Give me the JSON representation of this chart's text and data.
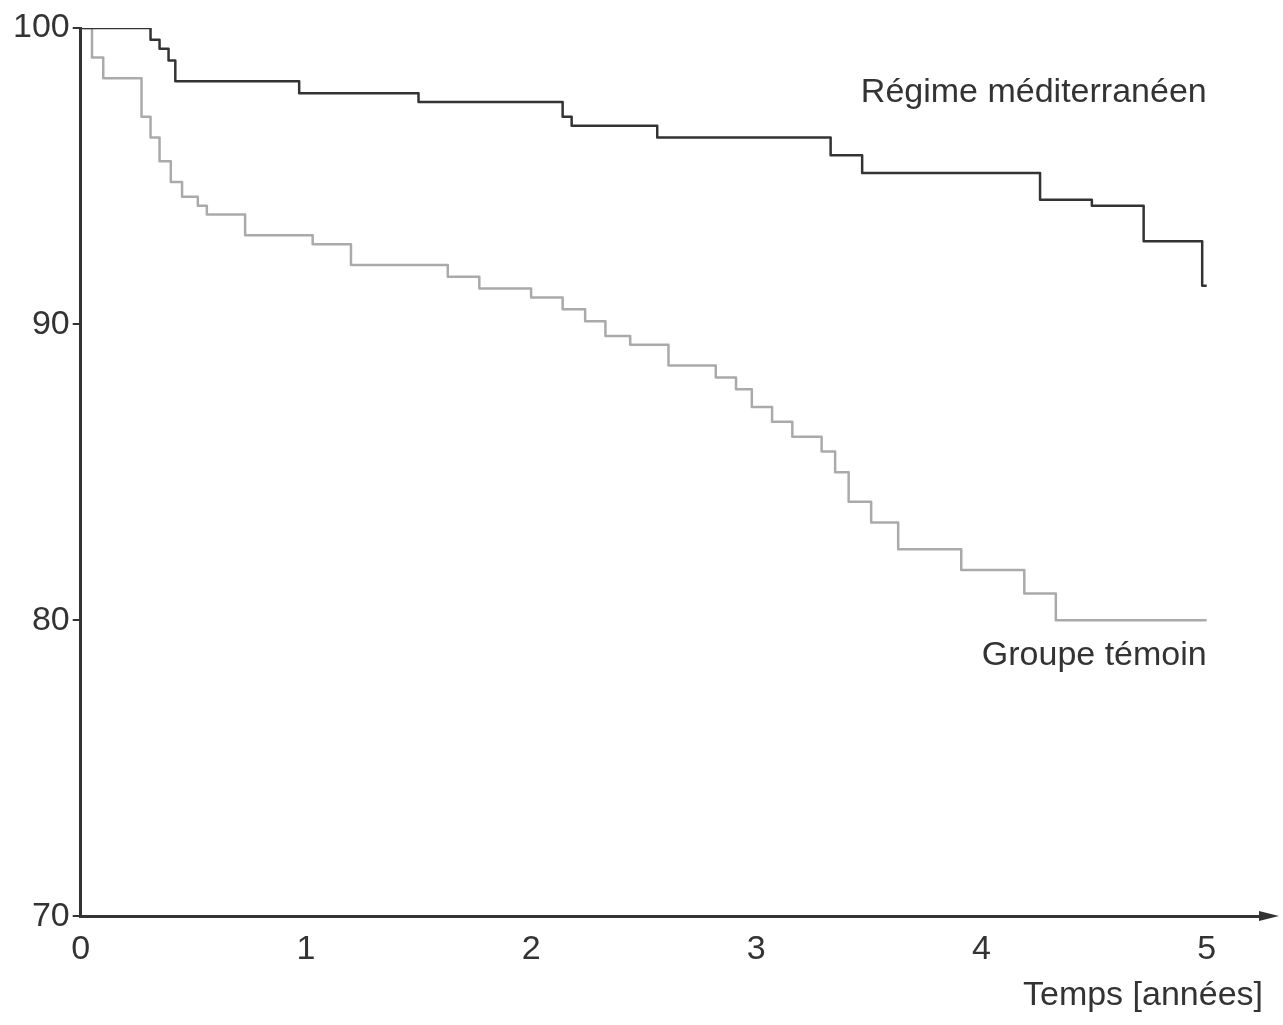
{
  "chart_data": {
    "type": "step",
    "xlabel": "Temps [années]",
    "xlim": [
      0,
      5.25
    ],
    "xticks": [
      0,
      1,
      2,
      3,
      4,
      5
    ],
    "ylim": [
      70,
      100
    ],
    "yticks": [
      70,
      80,
      90,
      100
    ],
    "grid": false,
    "legend": false,
    "marker": "none",
    "line_style": "solid",
    "series": [
      {
        "name": "Régime méditerranéen",
        "color": "#333333",
        "x": [
          0,
          0.31,
          0.35,
          0.39,
          0.42,
          0.97,
          1.5,
          2.14,
          2.18,
          2.56,
          3.33,
          3.47,
          4.26,
          4.49,
          4.72,
          4.98,
          5.0
        ],
        "values": [
          100,
          99.6,
          99.3,
          98.9,
          98.2,
          97.8,
          97.5,
          97.0,
          96.7,
          96.3,
          95.7,
          95.1,
          94.2,
          94.0,
          92.8,
          91.3,
          91.3
        ]
      },
      {
        "name": "Groupe témoin",
        "color": "#aaaaaa",
        "x": [
          0,
          0.05,
          0.1,
          0.27,
          0.31,
          0.35,
          0.4,
          0.45,
          0.52,
          0.56,
          0.73,
          1.03,
          1.2,
          1.63,
          1.77,
          2.0,
          2.14,
          2.24,
          2.33,
          2.44,
          2.61,
          2.82,
          2.91,
          2.98,
          3.07,
          3.16,
          3.29,
          3.35,
          3.41,
          3.51,
          3.63,
          3.91,
          4.19,
          4.33,
          5.0
        ],
        "values": [
          100,
          99.0,
          98.3,
          97.0,
          96.3,
          95.5,
          94.8,
          94.3,
          94.0,
          93.7,
          93.0,
          92.7,
          92.0,
          91.6,
          91.2,
          90.9,
          90.5,
          90.1,
          89.6,
          89.3,
          88.6,
          88.2,
          87.8,
          87.2,
          86.7,
          86.2,
          85.7,
          85.0,
          84.0,
          83.3,
          82.4,
          81.7,
          80.9,
          80.0,
          80.0
        ]
      }
    ]
  }
}
